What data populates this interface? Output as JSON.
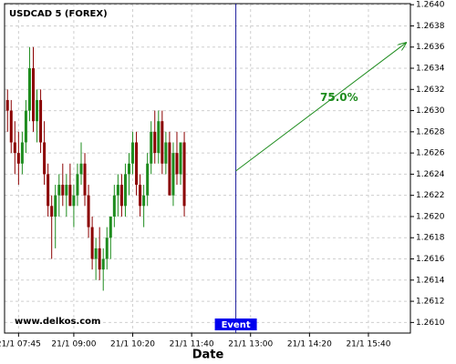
{
  "chart_data": {
    "type": "candlestick",
    "title": "USDCAD 5 (FOREX)",
    "watermark": "www.delkos.com",
    "x_label": "Date",
    "up_color": "#1e8c1e",
    "down_color": "#8b0000",
    "grid": true,
    "xlim": [
      "21/1 07:26",
      "21/1 16:37"
    ],
    "xticks": [
      "21/1 07:45",
      "21/1 09:00",
      "21/1 10:20",
      "21/1 11:40",
      "21/1 13:00",
      "21/1 14:20",
      "21/1 15:40"
    ],
    "ylim": [
      1.2609,
      1.26401
    ],
    "yticks": [
      {
        "value": 1.261,
        "label": "1.2610"
      },
      {
        "value": 1.2612,
        "label": "1.2612"
      },
      {
        "value": 1.2614,
        "label": "1.2614"
      },
      {
        "value": 1.2616,
        "label": "1.2616"
      },
      {
        "value": 1.2618,
        "label": "1.2618"
      },
      {
        "value": 1.262,
        "label": "1.2620"
      },
      {
        "value": 1.2622,
        "label": "1.2622"
      },
      {
        "value": 1.2624,
        "label": "1.2624"
      },
      {
        "value": 1.2626,
        "label": "1.2626"
      },
      {
        "value": 1.2628,
        "label": "1.2628"
      },
      {
        "value": 1.263,
        "label": "1.2630"
      },
      {
        "value": 1.2632,
        "label": "1.2632"
      },
      {
        "value": 1.2634,
        "label": "1.2634"
      },
      {
        "value": 1.2636,
        "label": "1.2636"
      },
      {
        "value": 1.2638,
        "label": "1.2638"
      },
      {
        "value": 1.264,
        "label": "1.2640"
      }
    ],
    "x": [
      "21/1 07:30",
      "21/1 07:35",
      "21/1 07:40",
      "21/1 07:45",
      "21/1 07:50",
      "21/1 07:55",
      "21/1 08:00",
      "21/1 08:05",
      "21/1 08:10",
      "21/1 08:15",
      "21/1 08:20",
      "21/1 08:25",
      "21/1 08:30",
      "21/1 08:35",
      "21/1 08:40",
      "21/1 08:45",
      "21/1 08:50",
      "21/1 08:55",
      "21/1 09:00",
      "21/1 09:05",
      "21/1 09:10",
      "21/1 09:15",
      "21/1 09:20",
      "21/1 09:25",
      "21/1 09:30",
      "21/1 09:35",
      "21/1 09:40",
      "21/1 09:45",
      "21/1 09:50",
      "21/1 09:55",
      "21/1 10:00",
      "21/1 10:05",
      "21/1 10:10",
      "21/1 10:15",
      "21/1 10:20",
      "21/1 10:25",
      "21/1 10:30",
      "21/1 10:35",
      "21/1 10:40",
      "21/1 10:45",
      "21/1 10:50",
      "21/1 10:55",
      "21/1 11:00",
      "21/1 11:05",
      "21/1 11:10",
      "21/1 11:15",
      "21/1 11:20",
      "21/1 11:25",
      "21/1 11:30"
    ],
    "open": [
      1.2631,
      1.263,
      1.2627,
      1.2626,
      1.2625,
      1.2627,
      1.263,
      1.2634,
      1.2629,
      1.2631,
      1.2627,
      1.2624,
      1.2621,
      1.262,
      1.2622,
      1.2623,
      1.2622,
      1.2623,
      1.2621,
      1.2622,
      1.2624,
      1.2625,
      1.2622,
      1.2619,
      1.2616,
      1.2617,
      1.2615,
      1.2616,
      1.2618,
      1.262,
      1.2622,
      1.2623,
      1.2621,
      1.2624,
      1.2625,
      1.2627,
      1.2623,
      1.2621,
      1.2622,
      1.2625,
      1.2628,
      1.2626,
      1.2629,
      1.2625,
      1.2627,
      1.2622,
      1.2626,
      1.2624,
      1.2627
    ],
    "high": [
      1.2632,
      1.2631,
      1.2629,
      1.2628,
      1.2628,
      1.2631,
      1.2636,
      1.2636,
      1.2632,
      1.2632,
      1.2629,
      1.2625,
      1.2622,
      1.2623,
      1.2624,
      1.2625,
      1.2624,
      1.2625,
      1.2623,
      1.2625,
      1.2627,
      1.2626,
      1.2623,
      1.262,
      1.2618,
      1.2619,
      1.2617,
      1.2619,
      1.262,
      1.2623,
      1.2624,
      1.2624,
      1.2625,
      1.2626,
      1.2628,
      1.2628,
      1.2624,
      1.2623,
      1.2626,
      1.2629,
      1.263,
      1.263,
      1.263,
      1.2628,
      1.2628,
      1.2627,
      1.2628,
      1.2627,
      1.2628
    ],
    "low": [
      1.2628,
      1.2626,
      1.2624,
      1.2623,
      1.2624,
      1.2626,
      1.2629,
      1.2628,
      1.2627,
      1.2626,
      1.2623,
      1.262,
      1.2616,
      1.2617,
      1.262,
      1.2621,
      1.262,
      1.2621,
      1.2619,
      1.2621,
      1.2623,
      1.2621,
      1.2618,
      1.2615,
      1.2614,
      1.2614,
      1.2613,
      1.2615,
      1.2616,
      1.2619,
      1.262,
      1.262,
      1.262,
      1.2622,
      1.2624,
      1.2622,
      1.262,
      1.2619,
      1.2621,
      1.2624,
      1.2625,
      1.2625,
      1.2624,
      1.2624,
      1.2622,
      1.2621,
      1.2623,
      1.2623,
      1.262
    ],
    "close": [
      1.263,
      1.2627,
      1.2626,
      1.2625,
      1.2627,
      1.263,
      1.2634,
      1.2629,
      1.2631,
      1.2627,
      1.2624,
      1.2621,
      1.262,
      1.2622,
      1.2623,
      1.2622,
      1.2623,
      1.2621,
      1.2622,
      1.2624,
      1.2625,
      1.2622,
      1.2619,
      1.2616,
      1.2617,
      1.2615,
      1.2616,
      1.2618,
      1.262,
      1.2622,
      1.2623,
      1.2621,
      1.2624,
      1.2625,
      1.2627,
      1.2623,
      1.2621,
      1.2622,
      1.2625,
      1.2628,
      1.2626,
      1.2629,
      1.2625,
      1.2627,
      1.2622,
      1.2626,
      1.2624,
      1.2627,
      1.2621
    ],
    "event": {
      "label": "Event",
      "x": "21/1 12:40",
      "color": "#1c1c9c"
    },
    "arrow": {
      "label": "75.0%",
      "color": "#1e8c1e",
      "start": {
        "x": "21/1 12:40",
        "y": 1.26243
      },
      "end": {
        "x": "21/1 16:31",
        "y": 1.26364
      }
    }
  }
}
